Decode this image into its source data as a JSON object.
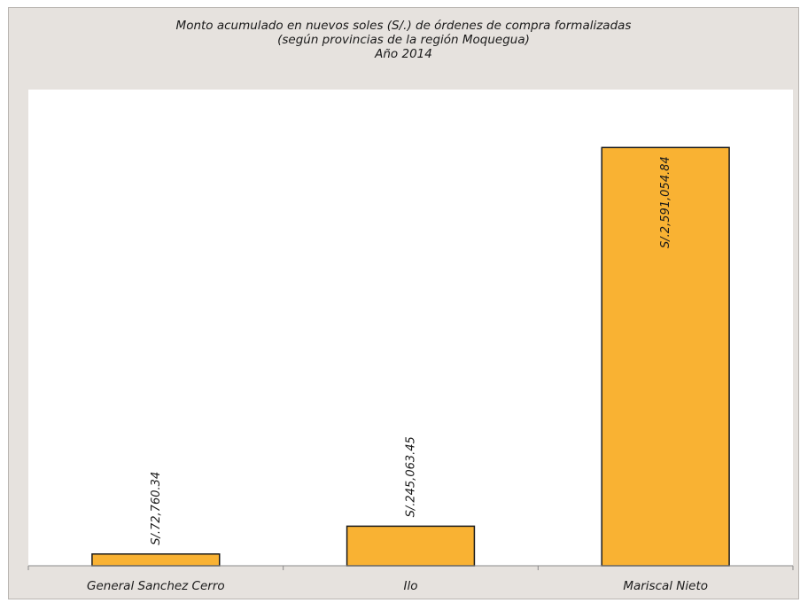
{
  "chart_data": {
    "type": "bar",
    "title": "Monto acumulado en nuevos soles (S/.) de órdenes de compra formalizadas",
    "subtitle": "(según provincias de la región Moquegua)",
    "year_label": "Año 2014",
    "xlabel": "",
    "ylabel": "",
    "categories": [
      "General Sanchez Cerro",
      "Ilo",
      "Mariscal Nieto"
    ],
    "values": [
      72760.34,
      245063.45,
      2591054.84
    ],
    "data_labels": [
      "S/.72,760.34",
      "S/.245,063.45",
      "S/.2,591,054.84"
    ],
    "ylim": [
      0,
      2950000
    ],
    "grid": false,
    "legend": "none",
    "colors": {
      "bar_fill": "#f9b233",
      "bar_stroke": "#1a1a1a",
      "plot_bg": "#ffffff",
      "frame_bg": "#e6e2de"
    }
  }
}
